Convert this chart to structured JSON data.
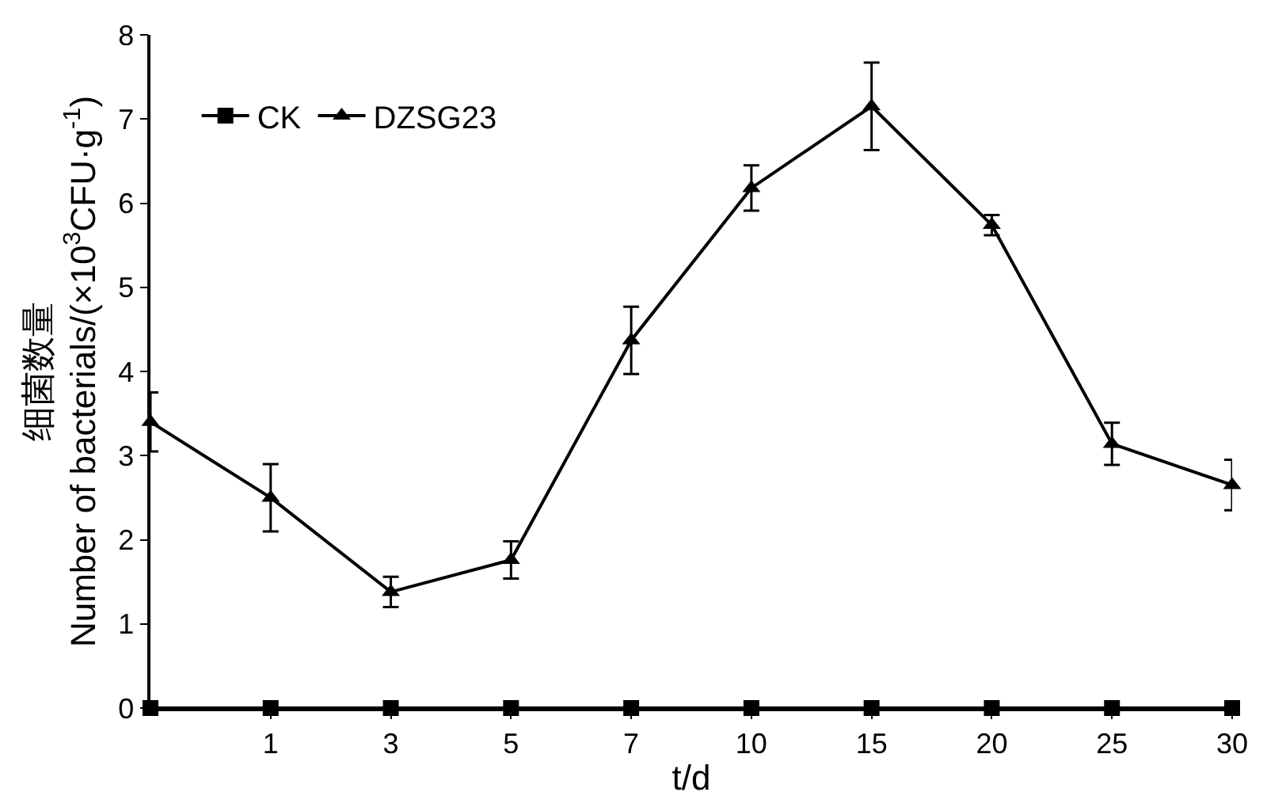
{
  "chart_data": {
    "type": "line",
    "xlabel": "t/d",
    "ylabel": "细菌数量\nNumber of bacterials/(×10$^{3}$CFU·g$^{-1}$)",
    "categories": [
      null,
      "1",
      "3",
      "5",
      "7",
      "10",
      "15",
      "20",
      "25",
      "30"
    ],
    "ylim": [
      0,
      8
    ],
    "yticks": [
      0,
      1,
      2,
      3,
      4,
      5,
      6,
      7,
      8
    ],
    "legend": "top left",
    "series": [
      {
        "name": "CK",
        "color": "#000000",
        "marker": "square",
        "values": [
          0,
          0,
          0,
          0,
          0,
          0,
          0,
          0,
          0,
          0
        ]
      },
      {
        "name": "DZSG23",
        "color": "#000000",
        "marker": "triangle",
        "values": [
          3.4,
          2.5,
          1.38,
          1.76,
          4.37,
          6.18,
          7.15,
          5.74,
          3.14,
          2.65
        ],
        "errors": [
          0.35,
          0.4,
          0.18,
          0.22,
          0.4,
          0.27,
          0.52,
          0.12,
          0.25,
          0.3
        ]
      }
    ]
  }
}
